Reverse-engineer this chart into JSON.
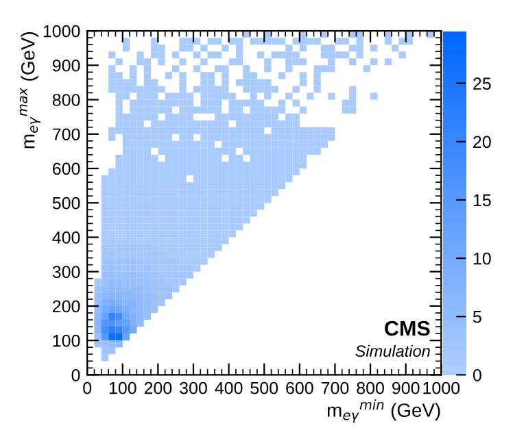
{
  "chart_data": {
    "type": "heatmap",
    "xlabel": "m$_{eγ}$$^{min}$ (GeV)",
    "ylabel": "m$_{eγ}$$^{max}$ (GeV)",
    "annotations": [
      "CMS",
      "Simulation"
    ],
    "xlim": [
      0,
      1000
    ],
    "ylim": [
      0,
      1000
    ],
    "xticks": [
      0,
      100,
      200,
      300,
      400,
      500,
      600,
      700,
      800,
      900,
      1000
    ],
    "yticks": [
      0,
      100,
      200,
      300,
      400,
      500,
      600,
      700,
      800,
      900,
      1000
    ],
    "clim": [
      0,
      29.5
    ],
    "cticks": [
      0,
      5,
      10,
      15,
      20,
      25
    ],
    "x": [
      10,
      30,
      50,
      70,
      90,
      110,
      130,
      150,
      170,
      190,
      210,
      230,
      250,
      270,
      290,
      310,
      330,
      350,
      370,
      390,
      410,
      430,
      450,
      470,
      490,
      510,
      530,
      550,
      570,
      590,
      610,
      630,
      650,
      670,
      690,
      710,
      730,
      750,
      770,
      790,
      810,
      830,
      850,
      870,
      890,
      910,
      930,
      950,
      970,
      990
    ],
    "y": [
      990,
      970,
      950,
      930,
      910,
      890,
      870,
      850,
      830,
      810,
      790,
      770,
      750,
      730,
      710,
      690,
      670,
      650,
      630,
      610,
      590,
      570,
      550,
      530,
      510,
      490,
      470,
      450,
      430,
      410,
      390,
      370,
      350,
      330,
      310,
      290,
      270,
      250,
      230,
      210,
      190,
      170,
      150,
      130,
      110,
      90,
      70,
      50
    ],
    "cells": [
      [
        null,
        null,
        null,
        null,
        null,
        null,
        null,
        null,
        null,
        null,
        null,
        null,
        null,
        null,
        null,
        null,
        null,
        null,
        null,
        null,
        null,
        null,
        1,
        null,
        null,
        1,
        null,
        null,
        null,
        null,
        1,
        null,
        null,
        1,
        null,
        null,
        null,
        1,
        1,
        null,
        null,
        null,
        1,
        null,
        null,
        1,
        null,
        null,
        1,
        null
      ],
      [
        null,
        null,
        null,
        null,
        null,
        1,
        null,
        null,
        null,
        1,
        null,
        null,
        null,
        1,
        1,
        1,
        null,
        1,
        1,
        null,
        1,
        1,
        null,
        1,
        1,
        1,
        1,
        1,
        null,
        1,
        1,
        1,
        1,
        null,
        null,
        1,
        1,
        null,
        1,
        null,
        null,
        null,
        1,
        null,
        1,
        1,
        null,
        null,
        null,
        null
      ],
      [
        null,
        null,
        null,
        null,
        null,
        1,
        null,
        null,
        null,
        1,
        1,
        null,
        null,
        1,
        1,
        null,
        1,
        null,
        null,
        1,
        null,
        1,
        null,
        null,
        null,
        null,
        null,
        null,
        1,
        null,
        1,
        null,
        null,
        1,
        1,
        null,
        null,
        1,
        1,
        null,
        1,
        null,
        null,
        1,
        null,
        null,
        null,
        null,
        null,
        null
      ],
      [
        null,
        null,
        null,
        1,
        null,
        null,
        null,
        1,
        null,
        1,
        1,
        null,
        1,
        null,
        null,
        1,
        null,
        1,
        1,
        null,
        null,
        1,
        null,
        null,
        1,
        null,
        1,
        1,
        1,
        1,
        null,
        null,
        null,
        1,
        1,
        1,
        1,
        null,
        1,
        null,
        null,
        null,
        null,
        null,
        1,
        null,
        null,
        null,
        null,
        null
      ],
      [
        null,
        null,
        null,
        null,
        1,
        null,
        null,
        1,
        1,
        null,
        1,
        null,
        null,
        1,
        null,
        null,
        1,
        null,
        null,
        null,
        1,
        1,
        null,
        null,
        null,
        1,
        null,
        null,
        1,
        1,
        1,
        null,
        null,
        null,
        1,
        null,
        null,
        1,
        null,
        null,
        1,
        null,
        1,
        null,
        null,
        null,
        null,
        null,
        null,
        null
      ],
      [
        null,
        null,
        null,
        1,
        null,
        null,
        1,
        null,
        1,
        null,
        null,
        null,
        1,
        null,
        null,
        1,
        null,
        null,
        1,
        1,
        null,
        null,
        1,
        null,
        null,
        1,
        null,
        null,
        1,
        null,
        null,
        null,
        1,
        1,
        1,
        null,
        null,
        null,
        null,
        1,
        null,
        null,
        null,
        null,
        null,
        null,
        null,
        null,
        null,
        null
      ],
      [
        null,
        null,
        null,
        1,
        1,
        null,
        1,
        null,
        1,
        null,
        null,
        1,
        null,
        1,
        null,
        null,
        1,
        1,
        null,
        1,
        null,
        null,
        1,
        1,
        null,
        null,
        null,
        1,
        null,
        null,
        1,
        null,
        1,
        null,
        null,
        null,
        null,
        null,
        null,
        null,
        null,
        null,
        null,
        null,
        null,
        null,
        null,
        null,
        null,
        null
      ],
      [
        null,
        null,
        null,
        1,
        1,
        1,
        1,
        null,
        1,
        1,
        null,
        null,
        null,
        1,
        null,
        null,
        1,
        1,
        null,
        1,
        null,
        1,
        1,
        1,
        1,
        1,
        null,
        null,
        null,
        null,
        1,
        null,
        1,
        null,
        null,
        null,
        null,
        null,
        null,
        null,
        null,
        null,
        null,
        null,
        null,
        null,
        null,
        null,
        null,
        null
      ],
      [
        null,
        null,
        null,
        1,
        1,
        1,
        1,
        1,
        1,
        1,
        1,
        null,
        null,
        1,
        null,
        1,
        1,
        1,
        1,
        1,
        null,
        null,
        1,
        1,
        1,
        1,
        1,
        null,
        null,
        1,
        null,
        null,
        1,
        null,
        null,
        null,
        null,
        1,
        null,
        null,
        null,
        null,
        null,
        null,
        null,
        null,
        null,
        null,
        null,
        null
      ],
      [
        null,
        null,
        null,
        null,
        1,
        1,
        null,
        1,
        1,
        1,
        null,
        1,
        1,
        1,
        1,
        null,
        1,
        1,
        1,
        1,
        1,
        null,
        null,
        1,
        null,
        1,
        null,
        null,
        1,
        null,
        null,
        1,
        null,
        null,
        1,
        null,
        null,
        1,
        null,
        null,
        1,
        null,
        null,
        null,
        null,
        null,
        null,
        null,
        null,
        null
      ],
      [
        null,
        null,
        null,
        null,
        1,
        null,
        1,
        1,
        1,
        1,
        1,
        1,
        1,
        1,
        1,
        null,
        1,
        1,
        1,
        null,
        1,
        1,
        1,
        1,
        1,
        null,
        null,
        1,
        null,
        1,
        null,
        null,
        null,
        null,
        null,
        null,
        1,
        1,
        null,
        null,
        null,
        null,
        null,
        null,
        null,
        null,
        null,
        null,
        null,
        null
      ],
      [
        null,
        null,
        null,
        null,
        1,
        null,
        1,
        1,
        1,
        1,
        1,
        1,
        null,
        1,
        1,
        1,
        1,
        1,
        1,
        null,
        1,
        1,
        null,
        1,
        1,
        1,
        1,
        1,
        null,
        null,
        1,
        null,
        null,
        null,
        null,
        null,
        1,
        1,
        null,
        null,
        null,
        null,
        null,
        null,
        null,
        null,
        null,
        null,
        null,
        null
      ],
      [
        null,
        null,
        null,
        null,
        1,
        1,
        1,
        1,
        1,
        1,
        null,
        1,
        1,
        1,
        1,
        null,
        null,
        null,
        1,
        1,
        1,
        1,
        1,
        1,
        1,
        1,
        1,
        null,
        1,
        1,
        null,
        null,
        null,
        null,
        null,
        null,
        null,
        null,
        null,
        null,
        null,
        null,
        null,
        null,
        null,
        null,
        null,
        null,
        null,
        null
      ],
      [
        null,
        null,
        null,
        null,
        1,
        1,
        1,
        1,
        null,
        1,
        1,
        1,
        1,
        1,
        1,
        1,
        1,
        1,
        1,
        1,
        null,
        1,
        1,
        1,
        1,
        1,
        1,
        1,
        1,
        1,
        null,
        null,
        null,
        null,
        null,
        null,
        null,
        null,
        null,
        null,
        null,
        null,
        null,
        null,
        null,
        null,
        null,
        null,
        null,
        null
      ],
      [
        null,
        null,
        null,
        1,
        1,
        1,
        1,
        1,
        1,
        1,
        1,
        1,
        1,
        1,
        1,
        1,
        1,
        1,
        1,
        1,
        1,
        1,
        1,
        1,
        1,
        null,
        1,
        1,
        1,
        1,
        1,
        1,
        1,
        1,
        1,
        null,
        null,
        null,
        null,
        null,
        null,
        null,
        null,
        null,
        null,
        null,
        null,
        null,
        null,
        null
      ],
      [
        null,
        null,
        null,
        1,
        null,
        1,
        1,
        1,
        1,
        1,
        1,
        1,
        null,
        1,
        1,
        null,
        1,
        1,
        1,
        1,
        1,
        1,
        1,
        1,
        1,
        1,
        1,
        1,
        1,
        1,
        1,
        1,
        1,
        1,
        1,
        null,
        null,
        null,
        null,
        null,
        null,
        null,
        null,
        null,
        null,
        null,
        null,
        null,
        null,
        null
      ],
      [
        null,
        null,
        null,
        null,
        null,
        1,
        1,
        1,
        1,
        1,
        1,
        1,
        1,
        1,
        1,
        1,
        1,
        1,
        null,
        1,
        1,
        1,
        1,
        1,
        1,
        1,
        1,
        1,
        1,
        1,
        1,
        1,
        1,
        1,
        null,
        null,
        null,
        null,
        null,
        null,
        null,
        null,
        null,
        null,
        null,
        null,
        null,
        null,
        null,
        null
      ],
      [
        null,
        null,
        null,
        null,
        null,
        1,
        1,
        1,
        1,
        null,
        1,
        1,
        1,
        1,
        1,
        1,
        1,
        1,
        1,
        1,
        1,
        null,
        1,
        1,
        1,
        1,
        1,
        1,
        1,
        1,
        1,
        1,
        1,
        null,
        null,
        null,
        null,
        null,
        null,
        null,
        null,
        null,
        null,
        null,
        null,
        null,
        null,
        null,
        null,
        null
      ],
      [
        null,
        null,
        null,
        null,
        1,
        1,
        1,
        1,
        1,
        1,
        null,
        1,
        1,
        1,
        1,
        1,
        1,
        1,
        1,
        null,
        1,
        1,
        null,
        1,
        1,
        1,
        1,
        1,
        1,
        1,
        1,
        null,
        null,
        null,
        null,
        null,
        null,
        null,
        null,
        null,
        null,
        null,
        null,
        null,
        null,
        null,
        null,
        null,
        null,
        null
      ],
      [
        null,
        null,
        null,
        null,
        1,
        1,
        1,
        1,
        1,
        1,
        1,
        1,
        1,
        1,
        1,
        1,
        1,
        1,
        1,
        1,
        1,
        1,
        1,
        1,
        1,
        1,
        1,
        1,
        1,
        1,
        1,
        null,
        null,
        null,
        null,
        null,
        null,
        null,
        null,
        null,
        null,
        null,
        null,
        null,
        null,
        null,
        null,
        null,
        null,
        null
      ],
      [
        null,
        null,
        null,
        1,
        1,
        1,
        1,
        1,
        1,
        1,
        1,
        1,
        1,
        1,
        1,
        1,
        1,
        1,
        1,
        1,
        1,
        1,
        1,
        1,
        1,
        1,
        1,
        1,
        1,
        1,
        null,
        null,
        null,
        null,
        null,
        null,
        null,
        null,
        null,
        null,
        null,
        null,
        null,
        null,
        null,
        null,
        null,
        null,
        null,
        null
      ],
      [
        null,
        null,
        1,
        1,
        1,
        1,
        1,
        1,
        1,
        1,
        1,
        1,
        1,
        1,
        null,
        1,
        1,
        1,
        1,
        1,
        1,
        1,
        1,
        1,
        1,
        1,
        1,
        1,
        1,
        null,
        null,
        null,
        null,
        null,
        null,
        null,
        null,
        null,
        null,
        null,
        null,
        null,
        null,
        null,
        null,
        null,
        null,
        null,
        null,
        null
      ],
      [
        null,
        null,
        1,
        1,
        1,
        1,
        1,
        1,
        1,
        1,
        1,
        1,
        1,
        1,
        1,
        1,
        1,
        1,
        1,
        1,
        1,
        1,
        1,
        1,
        1,
        1,
        1,
        1,
        null,
        null,
        null,
        null,
        null,
        null,
        null,
        null,
        null,
        null,
        null,
        null,
        null,
        null,
        null,
        null,
        null,
        null,
        null,
        null,
        null,
        null
      ],
      [
        null,
        null,
        1,
        1,
        1,
        1,
        1,
        1,
        1,
        1,
        1,
        1,
        1,
        1,
        1,
        1,
        1,
        1,
        1,
        1,
        1,
        1,
        1,
        1,
        1,
        1,
        1,
        null,
        null,
        null,
        null,
        null,
        null,
        null,
        null,
        null,
        null,
        null,
        null,
        null,
        null,
        null,
        null,
        null,
        null,
        null,
        null,
        null,
        null,
        null
      ],
      [
        null,
        null,
        1,
        1,
        1,
        1,
        1,
        1,
        1,
        1,
        1,
        1,
        1,
        1,
        1,
        1,
        1,
        1,
        1,
        1,
        1,
        1,
        1,
        1,
        1,
        1,
        null,
        null,
        null,
        null,
        null,
        null,
        null,
        null,
        null,
        null,
        null,
        null,
        null,
        null,
        null,
        null,
        null,
        null,
        null,
        null,
        null,
        null,
        null,
        null
      ],
      [
        null,
        null,
        1,
        1,
        1,
        1,
        1,
        1,
        1,
        1,
        1,
        1,
        1,
        1,
        1,
        1,
        1,
        1,
        1,
        1,
        1,
        1,
        1,
        1,
        1,
        null,
        null,
        null,
        null,
        null,
        null,
        null,
        null,
        null,
        null,
        null,
        null,
        null,
        null,
        null,
        null,
        null,
        null,
        null,
        null,
        null,
        null,
        null,
        null,
        null
      ],
      [
        null,
        null,
        1,
        1,
        1,
        1,
        1,
        1,
        1,
        1,
        1,
        1,
        1,
        1,
        1,
        1,
        1,
        1,
        1,
        1,
        1,
        1,
        1,
        1,
        null,
        null,
        null,
        null,
        null,
        null,
        null,
        null,
        null,
        null,
        null,
        null,
        null,
        null,
        null,
        null,
        null,
        null,
        null,
        null,
        null,
        null,
        null,
        null,
        null,
        null
      ],
      [
        null,
        null,
        1,
        1,
        1,
        1,
        1,
        1,
        1,
        1,
        1,
        1,
        1,
        1,
        1,
        1,
        1,
        1,
        1,
        1,
        1,
        1,
        1,
        null,
        null,
        null,
        null,
        null,
        null,
        null,
        null,
        null,
        null,
        null,
        null,
        null,
        null,
        null,
        null,
        null,
        null,
        null,
        null,
        null,
        null,
        null,
        null,
        null,
        null,
        null
      ],
      [
        null,
        null,
        1,
        1,
        1,
        1,
        1,
        1,
        1,
        1,
        1,
        1,
        1,
        1,
        1,
        1,
        1,
        1,
        1,
        1,
        1,
        1,
        null,
        null,
        null,
        null,
        null,
        null,
        null,
        null,
        null,
        null,
        null,
        null,
        null,
        null,
        null,
        null,
        null,
        null,
        null,
        null,
        null,
        null,
        null,
        null,
        null,
        null,
        null,
        null
      ],
      [
        null,
        null,
        1,
        1,
        1,
        1,
        1,
        1,
        1,
        1,
        1,
        1,
        1,
        1,
        1,
        1,
        1,
        1,
        1,
        1,
        1,
        null,
        null,
        null,
        null,
        null,
        null,
        null,
        null,
        null,
        null,
        null,
        null,
        null,
        null,
        null,
        null,
        null,
        null,
        null,
        null,
        null,
        null,
        null,
        null,
        null,
        null,
        null,
        null,
        null
      ],
      [
        null,
        null,
        1,
        2,
        1,
        1,
        1,
        1,
        1,
        1,
        1,
        1,
        1,
        1,
        1,
        1,
        1,
        1,
        1,
        1,
        null,
        null,
        null,
        null,
        null,
        null,
        null,
        null,
        null,
        null,
        null,
        null,
        null,
        null,
        null,
        null,
        null,
        null,
        null,
        null,
        null,
        null,
        null,
        null,
        null,
        null,
        null,
        null,
        null,
        null
      ],
      [
        null,
        null,
        2,
        2,
        2,
        2,
        2,
        2,
        2,
        1,
        1,
        1,
        1,
        1,
        1,
        1,
        1,
        1,
        1,
        null,
        null,
        null,
        null,
        null,
        null,
        null,
        null,
        null,
        null,
        null,
        null,
        null,
        null,
        null,
        null,
        null,
        null,
        null,
        null,
        null,
        null,
        null,
        null,
        null,
        null,
        null,
        null,
        null,
        null,
        null
      ],
      [
        null,
        null,
        2,
        3,
        2,
        2,
        2,
        2,
        2,
        2,
        2,
        1,
        1,
        1,
        1,
        1,
        1,
        1,
        null,
        null,
        null,
        null,
        null,
        null,
        null,
        null,
        null,
        null,
        null,
        null,
        null,
        null,
        null,
        null,
        null,
        null,
        null,
        null,
        null,
        null,
        null,
        null,
        null,
        null,
        null,
        null,
        null,
        null,
        null,
        null
      ],
      [
        null,
        null,
        3,
        3,
        3,
        3,
        3,
        3,
        2,
        2,
        2,
        2,
        2,
        1,
        1,
        1,
        1,
        null,
        null,
        null,
        null,
        null,
        null,
        null,
        null,
        null,
        null,
        null,
        null,
        null,
        null,
        null,
        null,
        null,
        null,
        null,
        null,
        null,
        null,
        null,
        null,
        null,
        null,
        null,
        null,
        null,
        null,
        null,
        null,
        null
      ],
      [
        null,
        null,
        3,
        4,
        3,
        3,
        3,
        3,
        3,
        2,
        2,
        2,
        2,
        2,
        2,
        1,
        null,
        null,
        null,
        null,
        null,
        null,
        null,
        null,
        null,
        null,
        null,
        null,
        null,
        null,
        null,
        null,
        null,
        null,
        null,
        null,
        null,
        null,
        null,
        null,
        null,
        null,
        null,
        null,
        null,
        null,
        null,
        null,
        null,
        null
      ],
      [
        null,
        null,
        4,
        4,
        4,
        4,
        4,
        3,
        3,
        3,
        2,
        2,
        2,
        2,
        2,
        null,
        null,
        null,
        null,
        null,
        null,
        null,
        null,
        null,
        null,
        null,
        null,
        null,
        null,
        null,
        null,
        null,
        null,
        null,
        null,
        null,
        null,
        null,
        null,
        null,
        null,
        null,
        null,
        null,
        null,
        null,
        null,
        null,
        null,
        null
      ],
      [
        null,
        2,
        4,
        5,
        5,
        4,
        4,
        4,
        4,
        3,
        3,
        2,
        2,
        2,
        null,
        null,
        null,
        null,
        null,
        null,
        null,
        null,
        null,
        null,
        null,
        null,
        null,
        null,
        null,
        null,
        null,
        null,
        null,
        null,
        null,
        null,
        null,
        null,
        null,
        null,
        null,
        null,
        null,
        null,
        null,
        null,
        null,
        null,
        null,
        null
      ],
      [
        null,
        3,
        5,
        6,
        6,
        5,
        5,
        5,
        4,
        3,
        3,
        3,
        2,
        null,
        null,
        null,
        null,
        null,
        null,
        null,
        null,
        null,
        null,
        null,
        null,
        null,
        null,
        null,
        null,
        null,
        null,
        null,
        null,
        null,
        null,
        null,
        null,
        null,
        null,
        null,
        null,
        null,
        null,
        null,
        null,
        null,
        null,
        null,
        null,
        null
      ],
      [
        null,
        4,
        6,
        7,
        7,
        6,
        6,
        5,
        4,
        4,
        3,
        3,
        null,
        null,
        null,
        null,
        null,
        null,
        null,
        null,
        null,
        null,
        null,
        null,
        null,
        null,
        null,
        null,
        null,
        null,
        null,
        null,
        null,
        null,
        null,
        null,
        null,
        null,
        null,
        null,
        null,
        null,
        null,
        null,
        null,
        null,
        null,
        null,
        null,
        null
      ],
      [
        null,
        5,
        8,
        9,
        8,
        7,
        7,
        5,
        5,
        4,
        3,
        null,
        null,
        null,
        null,
        null,
        null,
        null,
        null,
        null,
        null,
        null,
        null,
        null,
        null,
        null,
        null,
        null,
        null,
        null,
        null,
        null,
        null,
        null,
        null,
        null,
        null,
        null,
        null,
        null,
        null,
        null,
        null,
        null,
        null,
        null,
        null,
        null,
        null,
        null
      ],
      [
        null,
        5,
        10,
        12,
        11,
        9,
        7,
        6,
        5,
        3,
        null,
        null,
        null,
        null,
        null,
        null,
        null,
        null,
        null,
        null,
        null,
        null,
        null,
        null,
        null,
        null,
        null,
        null,
        null,
        null,
        null,
        null,
        null,
        null,
        null,
        null,
        null,
        null,
        null,
        null,
        null,
        null,
        null,
        null,
        null,
        null,
        null,
        null,
        null,
        null
      ],
      [
        null,
        6,
        12,
        21,
        18,
        10,
        8,
        6,
        4,
        null,
        null,
        null,
        null,
        null,
        null,
        null,
        null,
        null,
        null,
        null,
        null,
        null,
        null,
        null,
        null,
        null,
        null,
        null,
        null,
        null,
        null,
        null,
        null,
        null,
        null,
        null,
        null,
        null,
        null,
        null,
        null,
        null,
        null,
        null,
        null,
        null,
        null,
        null,
        null,
        null
      ],
      [
        null,
        7,
        16,
        17,
        14,
        13,
        9,
        6,
        null,
        null,
        null,
        null,
        null,
        null,
        null,
        null,
        null,
        null,
        null,
        null,
        null,
        null,
        null,
        null,
        null,
        null,
        null,
        null,
        null,
        null,
        null,
        null,
        null,
        null,
        null,
        null,
        null,
        null,
        null,
        null,
        null,
        null,
        null,
        null,
        null,
        null,
        null,
        null,
        null,
        null
      ],
      [
        null,
        6,
        18,
        22,
        20,
        15,
        10,
        null,
        null,
        null,
        null,
        null,
        null,
        null,
        null,
        null,
        null,
        null,
        null,
        null,
        null,
        null,
        null,
        null,
        null,
        null,
        null,
        null,
        null,
        null,
        null,
        null,
        null,
        null,
        null,
        null,
        null,
        null,
        null,
        null,
        null,
        null,
        null,
        null,
        null,
        null,
        null,
        null,
        null,
        null
      ],
      [
        null,
        4,
        15,
        27,
        28,
        12,
        null,
        null,
        null,
        null,
        null,
        null,
        null,
        null,
        null,
        null,
        null,
        null,
        null,
        null,
        null,
        null,
        null,
        null,
        null,
        null,
        null,
        null,
        null,
        null,
        null,
        null,
        null,
        null,
        null,
        null,
        null,
        null,
        null,
        null,
        null,
        null,
        null,
        null,
        null,
        null,
        null,
        null,
        null,
        null
      ],
      [
        null,
        3,
        4,
        5,
        6,
        null,
        null,
        null,
        null,
        null,
        null,
        null,
        null,
        null,
        null,
        null,
        null,
        null,
        null,
        null,
        null,
        null,
        null,
        null,
        null,
        null,
        null,
        null,
        null,
        null,
        null,
        null,
        null,
        null,
        null,
        null,
        null,
        null,
        null,
        null,
        null,
        null,
        null,
        null,
        null,
        null,
        null,
        null,
        null,
        null
      ],
      [
        null,
        null,
        3,
        3,
        null,
        null,
        null,
        null,
        null,
        null,
        null,
        null,
        null,
        null,
        null,
        null,
        null,
        null,
        null,
        null,
        null,
        null,
        null,
        null,
        null,
        null,
        null,
        null,
        null,
        null,
        null,
        null,
        null,
        null,
        null,
        null,
        null,
        null,
        null,
        null,
        null,
        null,
        null,
        null,
        null,
        null,
        null,
        null,
        null,
        null
      ],
      [
        null,
        null,
        2,
        null,
        null,
        null,
        null,
        null,
        null,
        null,
        null,
        null,
        null,
        null,
        null,
        null,
        null,
        null,
        null,
        null,
        null,
        null,
        null,
        null,
        null,
        null,
        null,
        null,
        null,
        null,
        null,
        null,
        null,
        null,
        null,
        null,
        null,
        null,
        null,
        null,
        null,
        null,
        null,
        null,
        null,
        null,
        null,
        null,
        null,
        null
      ]
    ]
  }
}
